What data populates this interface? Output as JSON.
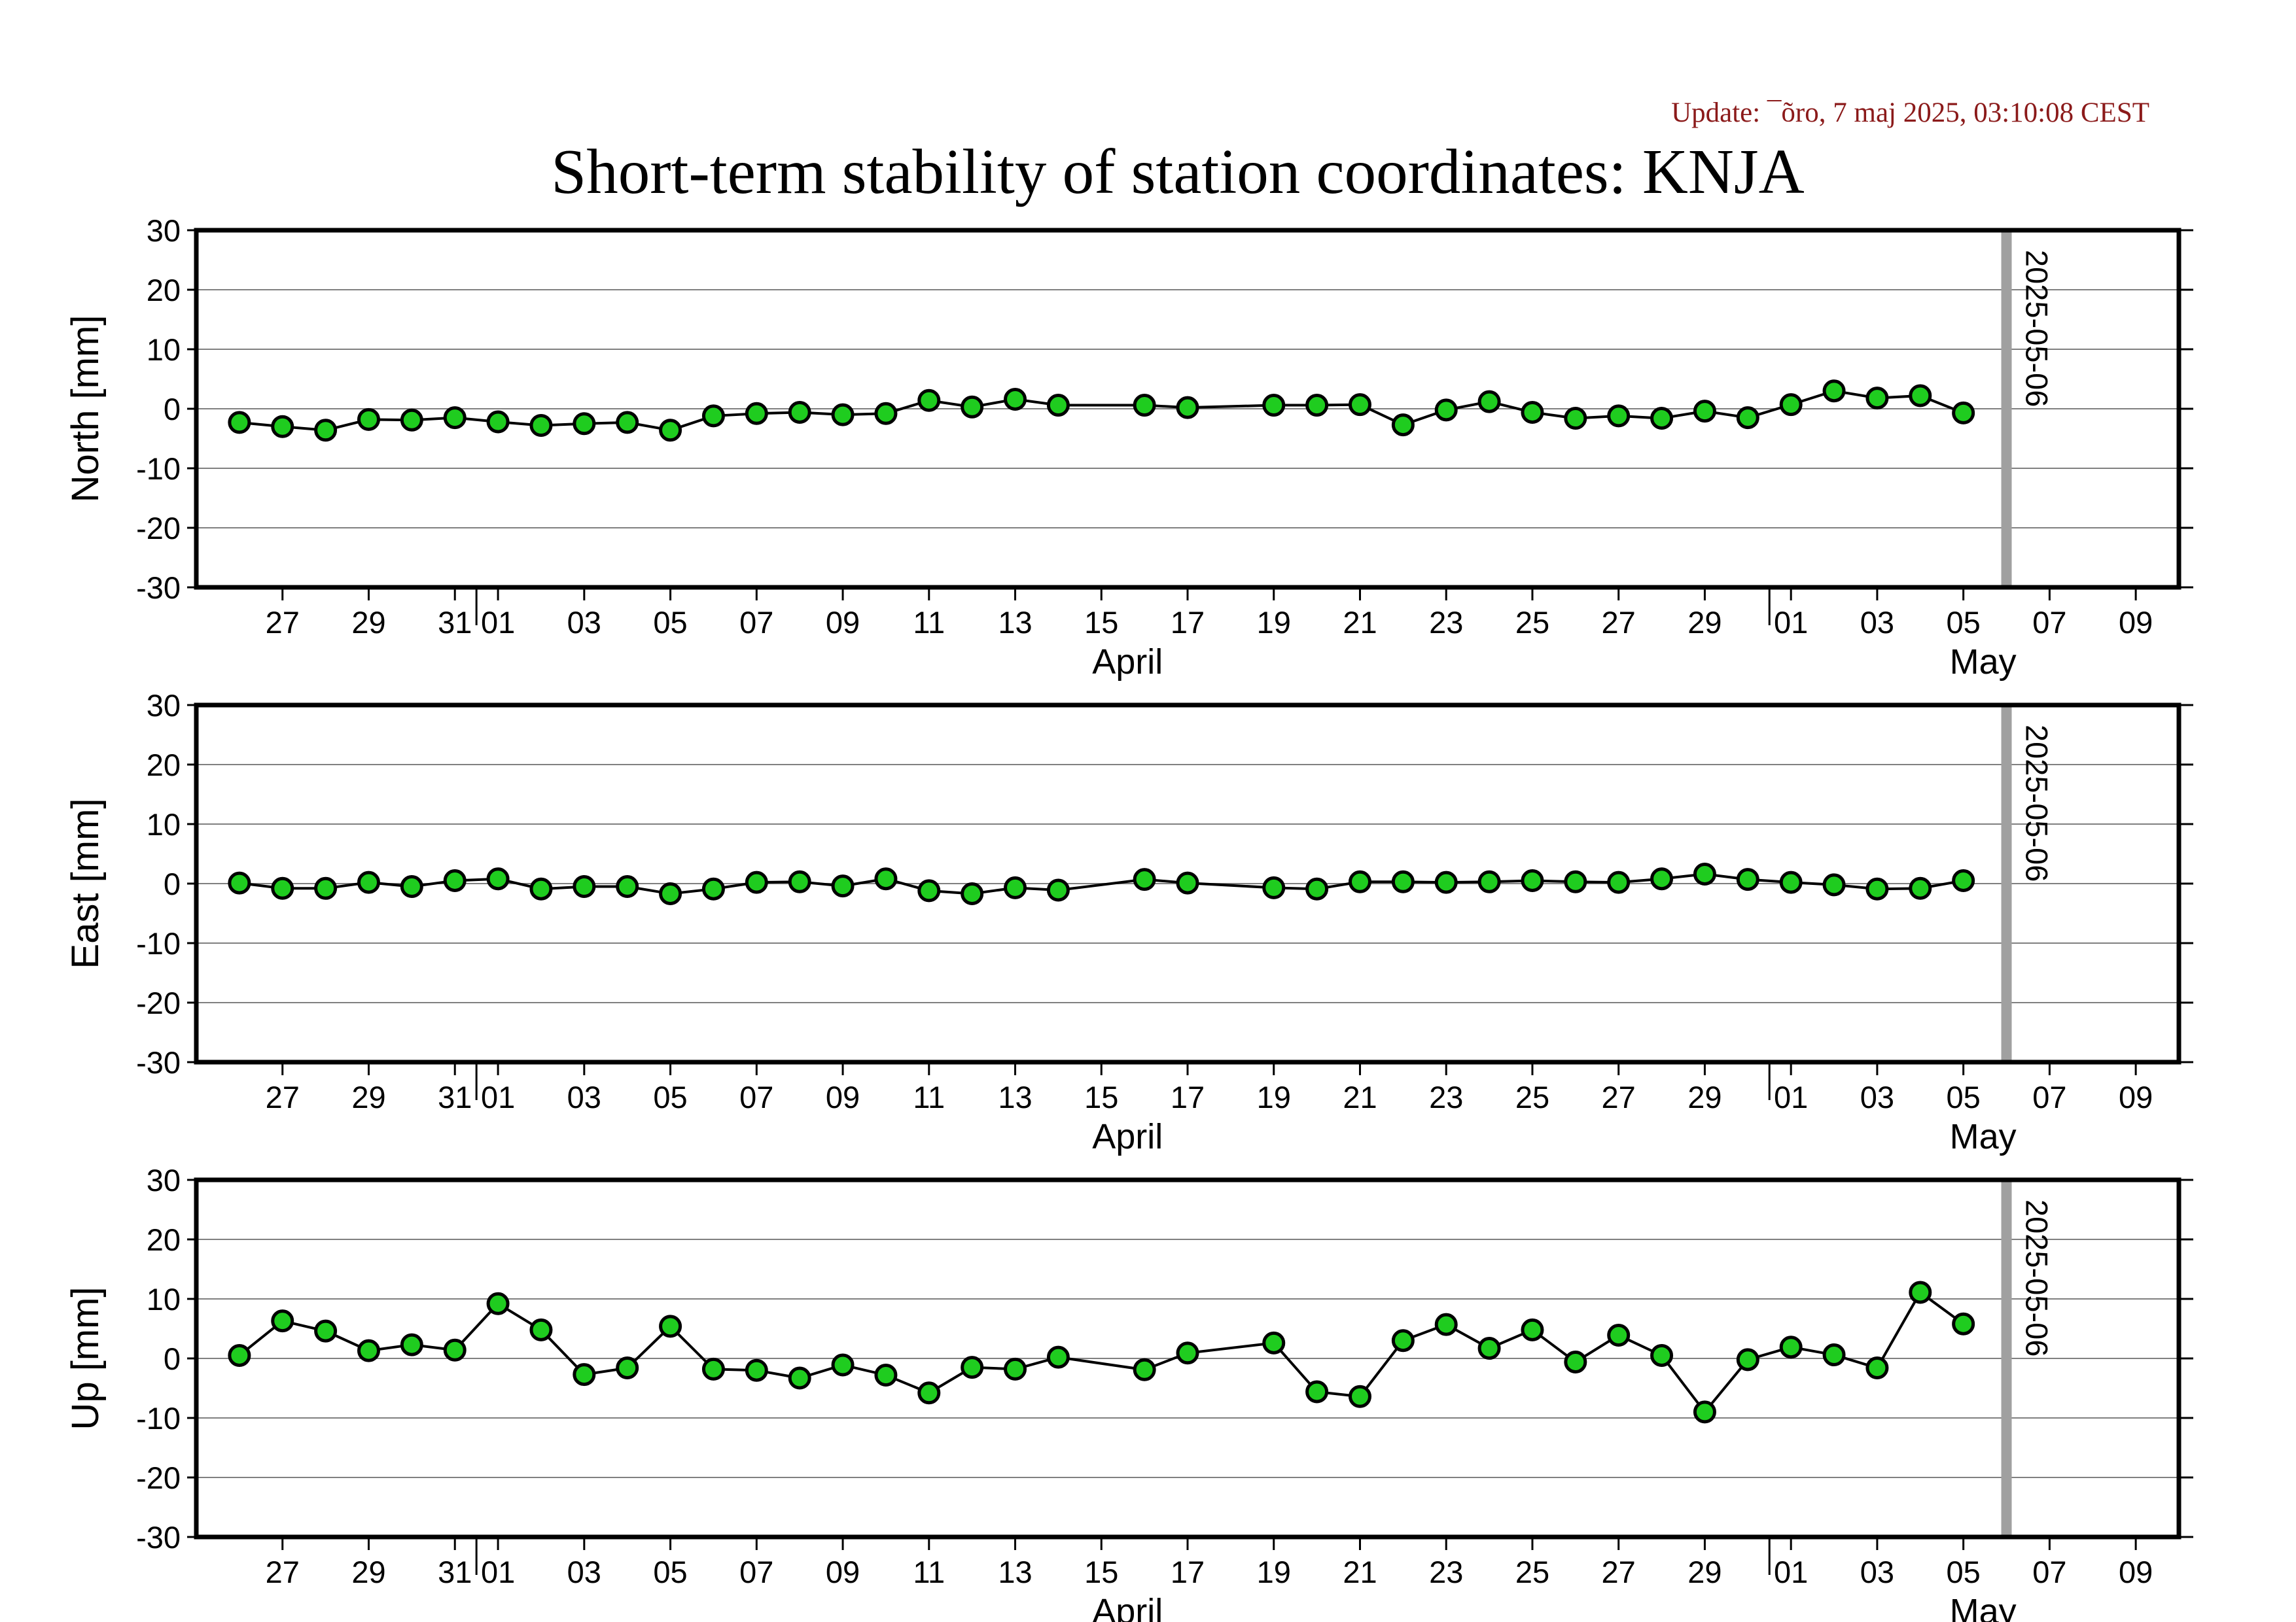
{
  "update_text": "Update: ¯õro, 7 maj 2025, 03:10:08 CEST",
  "title": "Short-term stability of station coordinates: KNJA",
  "colors": {
    "point_fill": "#1fcc1f",
    "point_stroke": "#000000",
    "line": "#000000",
    "grid": "#808080",
    "marker_line": "#a0a0a0",
    "update_text": "#8b1a1a"
  },
  "chart_data": [
    {
      "type": "line",
      "ylabel": "North [mm]",
      "ylim": [
        -30,
        30
      ],
      "yticks": [
        30,
        20,
        10,
        0,
        -10,
        -20,
        -30
      ],
      "grid": true,
      "xlim": [
        "2025-03-25T12:00",
        "2025-05-10T12:00"
      ],
      "xtick_labels": [
        "27",
        "29",
        "31",
        "01",
        "03",
        "05",
        "07",
        "09",
        "11",
        "13",
        "15",
        "17",
        "19",
        "21",
        "23",
        "25",
        "27",
        "29",
        "01",
        "03",
        "05",
        "07",
        "09"
      ],
      "month_labels": [
        "April",
        "May"
      ],
      "marker_date": "2025-05-06",
      "series": [
        {
          "x": [
            "2025-03-26",
            "2025-03-27",
            "2025-03-28",
            "2025-03-29",
            "2025-03-30",
            "2025-03-31",
            "2025-04-01",
            "2025-04-02",
            "2025-04-03",
            "2025-04-04",
            "2025-04-05",
            "2025-04-06",
            "2025-04-07",
            "2025-04-08",
            "2025-04-09",
            "2025-04-10",
            "2025-04-11",
            "2025-04-12",
            "2025-04-13",
            "2025-04-14",
            "2025-04-16",
            "2025-04-17",
            "2025-04-19",
            "2025-04-20",
            "2025-04-21",
            "2025-04-22",
            "2025-04-23",
            "2025-04-24",
            "2025-04-25",
            "2025-04-26",
            "2025-04-27",
            "2025-04-28",
            "2025-04-29",
            "2025-04-30",
            "2025-05-01",
            "2025-05-02",
            "2025-05-03",
            "2025-05-04",
            "2025-05-05"
          ],
          "y": [
            -2.3,
            -3.0,
            -3.6,
            -1.8,
            -1.9,
            -1.5,
            -2.2,
            -2.8,
            -2.5,
            -2.3,
            -3.6,
            -1.2,
            -0.8,
            -0.6,
            -1.0,
            -0.8,
            1.4,
            0.3,
            1.6,
            0.6,
            0.6,
            0.2,
            0.6,
            0.6,
            0.7,
            -2.7,
            -0.2,
            1.2,
            -0.6,
            -1.6,
            -1.2,
            -1.6,
            -0.4,
            -1.5,
            0.7,
            3.0,
            1.8,
            2.2,
            -0.7
          ]
        }
      ]
    },
    {
      "type": "line",
      "ylabel": "East [mm]",
      "ylim": [
        -30,
        30
      ],
      "yticks": [
        30,
        20,
        10,
        0,
        -10,
        -20,
        -30
      ],
      "grid": true,
      "xlim": [
        "2025-03-25T12:00",
        "2025-05-10T12:00"
      ],
      "xtick_labels": [
        "27",
        "29",
        "31",
        "01",
        "03",
        "05",
        "07",
        "09",
        "11",
        "13",
        "15",
        "17",
        "19",
        "21",
        "23",
        "25",
        "27",
        "29",
        "01",
        "03",
        "05",
        "07",
        "09"
      ],
      "month_labels": [
        "April",
        "May"
      ],
      "marker_date": "2025-05-06",
      "series": [
        {
          "x": [
            "2025-03-26",
            "2025-03-27",
            "2025-03-28",
            "2025-03-29",
            "2025-03-30",
            "2025-03-31",
            "2025-04-01",
            "2025-04-02",
            "2025-04-03",
            "2025-04-04",
            "2025-04-05",
            "2025-04-06",
            "2025-04-07",
            "2025-04-08",
            "2025-04-09",
            "2025-04-10",
            "2025-04-11",
            "2025-04-12",
            "2025-04-13",
            "2025-04-14",
            "2025-04-16",
            "2025-04-17",
            "2025-04-19",
            "2025-04-20",
            "2025-04-21",
            "2025-04-22",
            "2025-04-23",
            "2025-04-24",
            "2025-04-25",
            "2025-04-26",
            "2025-04-27",
            "2025-04-28",
            "2025-04-29",
            "2025-04-30",
            "2025-05-01",
            "2025-05-02",
            "2025-05-03",
            "2025-05-04",
            "2025-05-05"
          ],
          "y": [
            0.1,
            -0.8,
            -0.8,
            0.2,
            -0.5,
            0.5,
            0.8,
            -0.9,
            -0.5,
            -0.5,
            -1.7,
            -0.9,
            0.2,
            0.3,
            -0.4,
            0.8,
            -1.2,
            -1.7,
            -0.7,
            -1.1,
            0.7,
            0.1,
            -0.7,
            -0.9,
            0.3,
            0.3,
            0.2,
            0.3,
            0.5,
            0.3,
            0.2,
            0.8,
            1.6,
            0.7,
            0.2,
            -0.2,
            -0.9,
            -0.8,
            0.5
          ]
        }
      ]
    },
    {
      "type": "line",
      "ylabel": "Up [mm]",
      "ylim": [
        -30,
        30
      ],
      "yticks": [
        30,
        20,
        10,
        0,
        -10,
        -20,
        -30
      ],
      "grid": true,
      "xlim": [
        "2025-03-25T12:00",
        "2025-05-10T12:00"
      ],
      "xtick_labels": [
        "27",
        "29",
        "31",
        "01",
        "03",
        "05",
        "07",
        "09",
        "11",
        "13",
        "15",
        "17",
        "19",
        "21",
        "23",
        "25",
        "27",
        "29",
        "01",
        "03",
        "05",
        "07",
        "09"
      ],
      "month_labels": [
        "April",
        "May"
      ],
      "marker_date": "2025-05-06",
      "series": [
        {
          "x": [
            "2025-03-26",
            "2025-03-27",
            "2025-03-28",
            "2025-03-29",
            "2025-03-30",
            "2025-03-31",
            "2025-04-01",
            "2025-04-02",
            "2025-04-03",
            "2025-04-04",
            "2025-04-05",
            "2025-04-06",
            "2025-04-07",
            "2025-04-08",
            "2025-04-09",
            "2025-04-10",
            "2025-04-11",
            "2025-04-12",
            "2025-04-13",
            "2025-04-14",
            "2025-04-16",
            "2025-04-17",
            "2025-04-19",
            "2025-04-20",
            "2025-04-21",
            "2025-04-22",
            "2025-04-23",
            "2025-04-24",
            "2025-04-25",
            "2025-04-26",
            "2025-04-27",
            "2025-04-28",
            "2025-04-29",
            "2025-04-30",
            "2025-05-01",
            "2025-05-02",
            "2025-05-03",
            "2025-05-04",
            "2025-05-05"
          ],
          "y": [
            0.5,
            6.3,
            4.6,
            1.3,
            2.3,
            1.4,
            9.2,
            4.8,
            -2.7,
            -1.6,
            5.4,
            -1.8,
            -2.0,
            -3.3,
            -1.1,
            -2.8,
            -5.8,
            -1.5,
            -1.8,
            0.2,
            -1.9,
            0.9,
            2.6,
            -5.6,
            -6.4,
            3.0,
            5.7,
            1.7,
            4.8,
            -0.6,
            3.9,
            0.5,
            -9.0,
            -0.2,
            1.9,
            0.6,
            -1.6,
            11.1,
            5.8
          ]
        }
      ]
    }
  ]
}
